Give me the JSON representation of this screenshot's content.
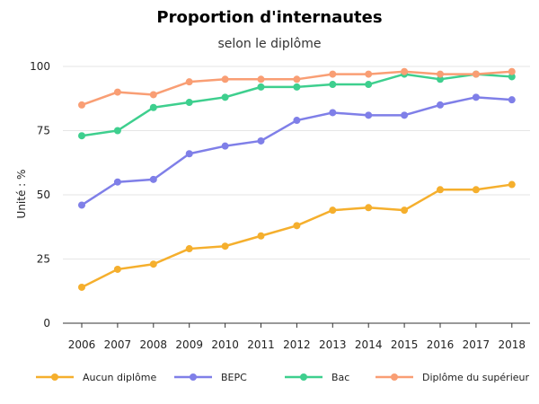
{
  "chart_data": {
    "type": "line",
    "title": "Proportion d'internautes",
    "subtitle": "selon le diplôme",
    "xlabel": "",
    "ylabel": "Unité : %",
    "ylim": [
      0,
      100
    ],
    "yticks": [
      0,
      25,
      50,
      75,
      100
    ],
    "grid": true,
    "legend_position": "bottom",
    "x": [
      "2006",
      "2007",
      "2008",
      "2009",
      "2010",
      "2011",
      "2012",
      "2013",
      "2014",
      "2015",
      "2016",
      "2017",
      "2018"
    ],
    "series": [
      {
        "name": "Aucun diplôme",
        "color": "#F5AF2D",
        "values": [
          14,
          21,
          23,
          29,
          30,
          34,
          38,
          44,
          45,
          44,
          52,
          52,
          54
        ]
      },
      {
        "name": "BEPC",
        "color": "#7F7FE8",
        "values": [
          46,
          55,
          56,
          66,
          69,
          71,
          79,
          82,
          81,
          81,
          85,
          88,
          87
        ]
      },
      {
        "name": "Bac",
        "color": "#3ECF8E",
        "values": [
          73,
          75,
          84,
          86,
          88,
          92,
          92,
          93,
          93,
          97,
          95,
          97,
          96
        ]
      },
      {
        "name": "Diplôme du supérieur",
        "color": "#F99E74",
        "values": [
          85,
          90,
          89,
          94,
          95,
          95,
          95,
          97,
          97,
          98,
          97,
          97,
          98
        ]
      }
    ]
  }
}
